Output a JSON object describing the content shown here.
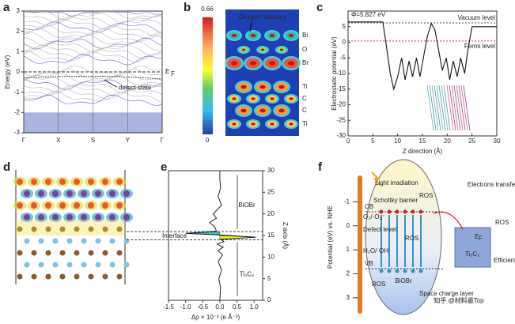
{
  "panels": {
    "a": {
      "label": "a",
      "y_label": "Energy (eV)",
      "ylim": [
        -3,
        3
      ],
      "yticks": [
        3,
        2,
        1,
        0,
        -1,
        -2,
        -3
      ],
      "xticks": [
        "Γ",
        "X",
        "S",
        "Y",
        "Γ"
      ],
      "fermi": {
        "main": "E",
        "sub": "F"
      },
      "annotation": "defect state"
    },
    "b": {
      "label": "b",
      "colorbar_max": 0.66,
      "colorbar_min": 0,
      "annotation": "Oxygen Vacancy",
      "atoms": [
        "Bi",
        "O",
        "Br",
        "Ti",
        "C",
        "C",
        "Ti"
      ]
    },
    "c": {
      "label": "c",
      "y_label": "Electrostatic potential (eV)",
      "x_label": "Z direction (Å)",
      "xlim": [
        0,
        30
      ],
      "ylim": [
        -30,
        10
      ],
      "xticks": [
        0,
        5,
        10,
        15,
        20,
        25,
        30
      ],
      "yticks": [
        5,
        0,
        -5,
        -10,
        -15,
        -20,
        -25,
        -30
      ],
      "work_function": "Φ=5.827 eV",
      "vacuum_label": "Vacuum level",
      "fermi_label": "Fermi level",
      "vacuum_level": 6.2,
      "fermi_level": 0.4,
      "curve": {
        "x": [
          0,
          7,
          7.8,
          8.5,
          9.2,
          10,
          10.8,
          11.5,
          12.3,
          13,
          13.8,
          14.5,
          15.3,
          16,
          16.8,
          17.5,
          18.2,
          19,
          19.8,
          20.5,
          21.2,
          22,
          22.7,
          23.5,
          24.2,
          25,
          30
        ],
        "y": [
          6.5,
          6.5,
          -2,
          -10,
          -15,
          -11,
          -5,
          -12,
          -6,
          -11,
          -5,
          -11,
          -4,
          2,
          6,
          4,
          -2,
          -9,
          -5,
          -12,
          -6,
          -11,
          -5,
          -10,
          -2,
          5,
          5
        ]
      }
    },
    "d": {
      "label": "d"
    },
    "e": {
      "label": "e",
      "x_label": "Δρ × 10⁻³ (e Å⁻³)",
      "y_label": "Z axis (Å)",
      "xlim": [
        -1.5,
        1.25
      ],
      "ylim": [
        0,
        30
      ],
      "xticks": [
        -1.5,
        {
          "value": -1.0,
          "label": "-1.0"
        },
        -0.5,
        {
          "value": 0.0,
          "label": "0.0"
        },
        0.5,
        {
          "value": 1.0,
          "label": "1.0"
        }
      ],
      "yticks": [
        0,
        5,
        10,
        15,
        20,
        25,
        30
      ],
      "top_label": "BiOBr",
      "interface_label": "Interface",
      "bottom_label": "Ti₃C₂",
      "curve": {
        "x": [
          0,
          0.02,
          -0.03,
          0.05,
          -0.05,
          0.08,
          -0.06,
          0.1,
          -0.08,
          0.12,
          0.02,
          1.05,
          0.1,
          -1.0,
          -0.1,
          -0.15,
          -0.3,
          -0.1,
          -0.2,
          0.05,
          -0.05,
          0.02,
          0.0,
          0.0
        ],
        "y": [
          0,
          3,
          5,
          7,
          9,
          10.5,
          11.5,
          12.3,
          13,
          13.6,
          14.1,
          14.6,
          15.1,
          15.5,
          16,
          17,
          18,
          19,
          20,
          22,
          24,
          26,
          28,
          30
        ]
      }
    },
    "f": {
      "label": "f",
      "y_label": "Potential (eV) vs. NHE",
      "ylim": [
        -2,
        3.5
      ],
      "yticks": [
        -1,
        0,
        1,
        2,
        3
      ],
      "light": "Light irradiation",
      "schottky": "Schottky barrier",
      "ros_top": "ROS",
      "cb": "CB",
      "o2": "O₂/·O₂⁻",
      "defect": "Defect level",
      "h2o": "H₂O/·OH",
      "vb": "VB",
      "ros_left": "ROS",
      "ros_mid": "ROS",
      "biobr": "BiOBr",
      "space_charge": "Space charge layer",
      "electrons": "Electrons transfer",
      "ros_right": "ROS",
      "ef": {
        "main": "E",
        "sub": "F"
      },
      "ti3c2": "Ti₃C₂",
      "efficient": "Efficient utilization"
    }
  },
  "watermark": "知乎 @材料最Top"
}
